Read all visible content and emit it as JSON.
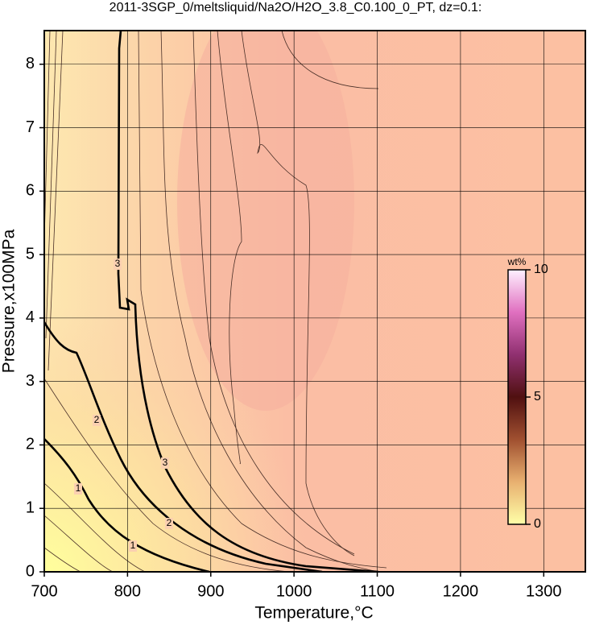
{
  "chart_data": {
    "type": "contour",
    "title": "2011-3SGP_0/meltsliquid/Na2O/H2O_3.8_C0.100_0_PT, dz=0.1:",
    "x_label": "Temperature,°C",
    "y_label": "Pressure,x100MPa",
    "xlim": [
      700,
      1350
    ],
    "xticks": [
      700,
      800,
      900,
      1000,
      1100,
      1200,
      1300
    ],
    "ylim": [
      0,
      8.53
    ],
    "yticks": [
      0,
      1,
      2,
      3,
      4,
      5,
      6,
      7,
      8
    ],
    "grid": true,
    "levels": [
      1,
      2,
      3
    ],
    "colorbar": {
      "label": "wt%",
      "lim": [
        0,
        10
      ],
      "ticks": [
        0,
        5,
        10
      ],
      "colors": [
        "#ffffa8",
        "#e8b070",
        "#a05030",
        "#501010",
        "#903070",
        "#e070c0",
        "#fff0ff"
      ]
    }
  }
}
